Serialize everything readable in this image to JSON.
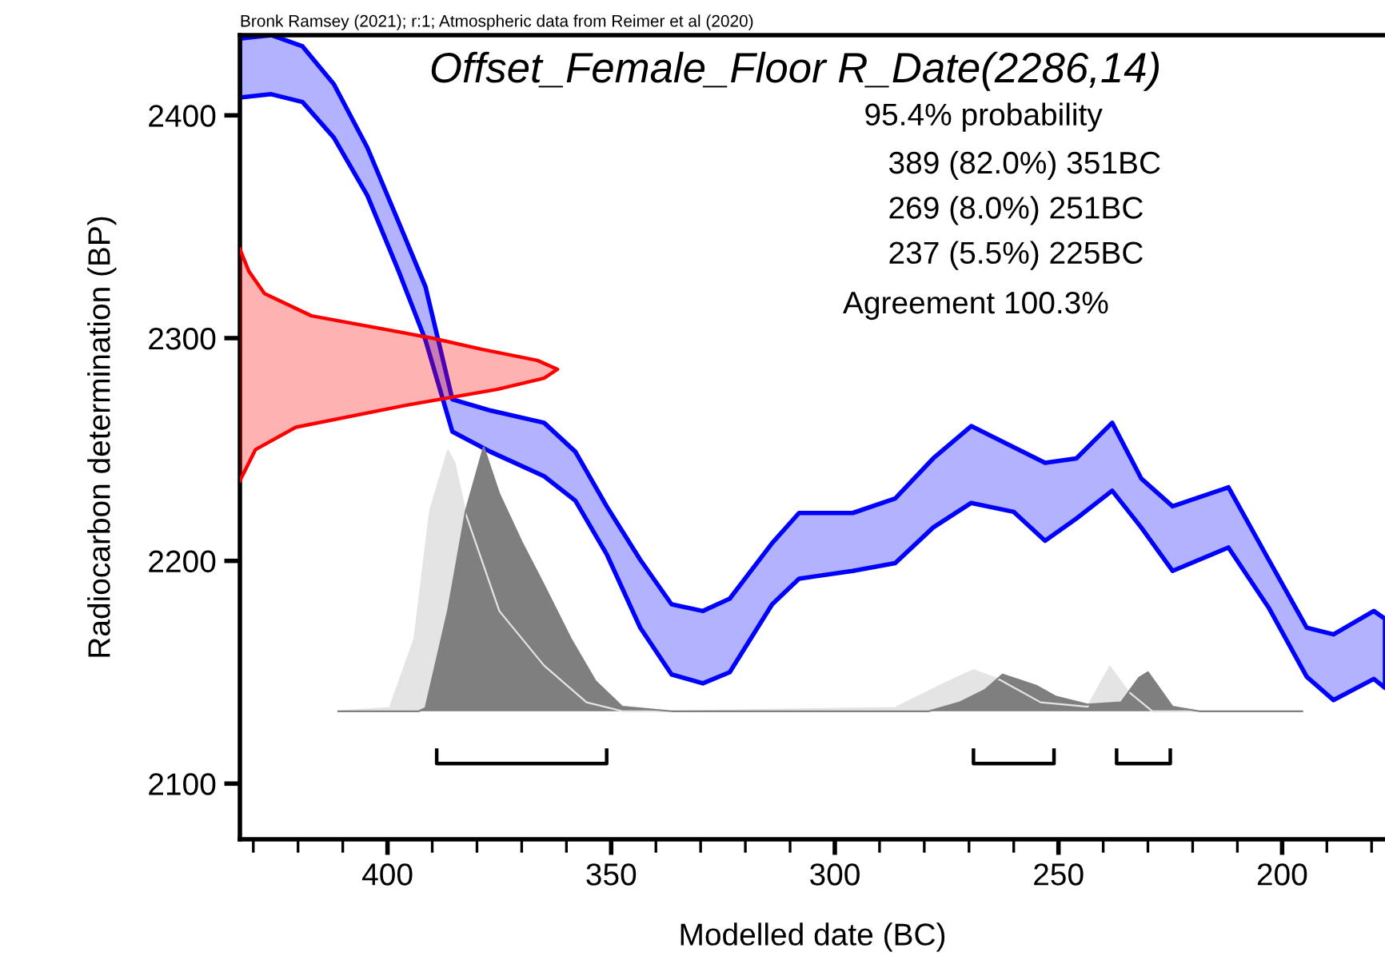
{
  "chart_data": {
    "type": "area",
    "title": "Offset_Female_Floor R_Date(2286,14)",
    "xlabel": "Modelled date (BC)",
    "ylabel": "Radiocarbon determination (BP)",
    "annotations": [
      "95.4% probability",
      "389 (82.0%) 351BC",
      "269 (8.0%) 251BC",
      "237 (5.5%) 225BC",
      "Agreement 100.3%",
      "Bronk Ramsey (2021); r:1; Atmospheric data from Reimer et al (2020)"
    ],
    "xlim": [
      433,
      177
    ],
    "ylim": [
      2075,
      2436
    ],
    "xticks": [
      {
        "value": 430,
        "label": null
      },
      {
        "value": 420,
        "label": null
      },
      {
        "value": 410,
        "label": null
      },
      400,
      {
        "value": 390,
        "label": null
      },
      {
        "value": 380,
        "label": null
      },
      {
        "value": 370,
        "label": null
      },
      {
        "value": 360,
        "label": null
      },
      350,
      {
        "value": 340,
        "label": null
      },
      {
        "value": 330,
        "label": null
      },
      {
        "value": 320,
        "label": null
      },
      {
        "value": 310,
        "label": null
      },
      300,
      {
        "value": 290,
        "label": null
      },
      {
        "value": 280,
        "label": null
      },
      {
        "value": 270,
        "label": null
      },
      {
        "value": 260,
        "label": null
      },
      250,
      {
        "value": 240,
        "label": null
      },
      {
        "value": 230,
        "label": null
      },
      {
        "value": 220,
        "label": null
      },
      {
        "value": 210,
        "label": null
      },
      200,
      {
        "value": 190,
        "label": null
      },
      {
        "value": 180,
        "label": null
      }
    ],
    "yticks": [
      2100,
      2200,
      2300,
      2400
    ],
    "series": [
      {
        "color": "#0000ff",
        "x": [
          433,
          426,
          419,
          412,
          404.5,
          397.5,
          391.5,
          385.5,
          377,
          365,
          358,
          351,
          343.5,
          336.5,
          329.5,
          323.5,
          314,
          308,
          296,
          286.5,
          278,
          269.5,
          260,
          253,
          246,
          238,
          231.5,
          224.5,
          212,
          203,
          194.5,
          188.5,
          179.5,
          177
        ],
        "values": [
          null,
          null,
          null,
          null,
          null,
          null,
          null,
          null,
          null,
          null,
          null,
          null,
          null,
          null,
          null,
          null,
          null,
          null,
          null,
          null,
          null,
          null,
          null,
          null,
          null,
          null,
          null,
          null,
          null,
          null,
          null,
          null,
          null,
          null
        ],
        "upper": [
          2434.5,
          2436,
          2431,
          2414,
          2385.5,
          2352,
          2323,
          2272.5,
          2267.5,
          2262,
          2249,
          2224.5,
          2200.5,
          2180.5,
          2177.5,
          2183,
          2208,
          2221.5,
          2221.5,
          2228,
          2246,
          2260.5,
          2251,
          2244,
          2246,
          2262,
          2237,
          2224.5,
          2233,
          2200.5,
          2170,
          2167,
          2177.5,
          2174
        ],
        "lower": [
          2408,
          2409.5,
          2406,
          2390,
          2364,
          2330,
          2299,
          2258,
          2249,
          2238,
          2227,
          2203,
          2170,
          2149,
          2145,
          2150,
          2180.5,
          2192,
          2195.5,
          2199,
          2215,
          2226,
          2222,
          2209,
          2219,
          2231.5,
          2215,
          2195.5,
          2206,
          2179,
          2148,
          2137.5,
          2147,
          2143
        ]
      },
      {
        "color": "#ff0000",
        "x": [
          433,
          431,
          427.5,
          417,
          390,
          379,
          366.5,
          362,
          365,
          375.5,
          395.5,
          420.5,
          429.5,
          432,
          433
        ],
        "values": [
          2340,
          2330,
          2320,
          2310,
          2300,
          2295,
          2290,
          2286,
          2282,
          2277,
          2270,
          2260,
          2250,
          2240,
          2236
        ]
      },
      {
        "color": "#e4e4e4",
        "x": [
          411,
          399.5,
          394,
          390.5,
          386.5,
          385,
          382.5,
          375,
          365,
          355.5,
          347.5,
          336.5,
          286.5,
          275.5,
          269,
          263,
          254,
          243.5,
          238.5,
          234.5,
          229,
          195.5
        ],
        "values": [
          2132.5,
          2134,
          2165,
          2222.5,
          2249.5,
          2244,
          2221,
          2177.5,
          2153,
          2136.5,
          2132.5,
          2132.5,
          2134,
          2145,
          2151,
          2146.5,
          2136.5,
          2134.5,
          2152.5,
          2141.5,
          2132.5,
          2132.5
        ]
      },
      {
        "color": "#7f7f7f",
        "x": [
          411,
          393,
          391.5,
          386.5,
          382.5,
          378.5,
          375,
          370,
          365,
          359,
          353.5,
          347.5,
          336.5,
          279,
          272,
          266.5,
          262.5,
          255,
          250.5,
          243.5,
          236,
          232,
          230,
          224.5,
          218.5,
          195.5
        ],
        "values": [
          2132.5,
          2132.5,
          2134,
          2177.5,
          2222.5,
          2251,
          2230,
          2208.5,
          2189,
          2165,
          2146,
          2134.5,
          2132.5,
          2132.5,
          2136.5,
          2142,
          2149,
          2144,
          2139,
          2135.5,
          2136.5,
          2147.5,
          2150,
          2134.5,
          2132.5,
          2132.5
        ]
      },
      {
        "type": "line",
        "color": "#000000",
        "x": [
          389,
          389,
          351,
          351,
          null,
          269,
          269,
          251,
          251,
          null,
          237,
          237,
          225,
          225
        ],
        "values": [
          2115,
          2109,
          2109,
          2115,
          null,
          2115,
          2109,
          2109,
          2115,
          null,
          2115,
          2109,
          2109,
          2115
        ]
      }
    ]
  }
}
